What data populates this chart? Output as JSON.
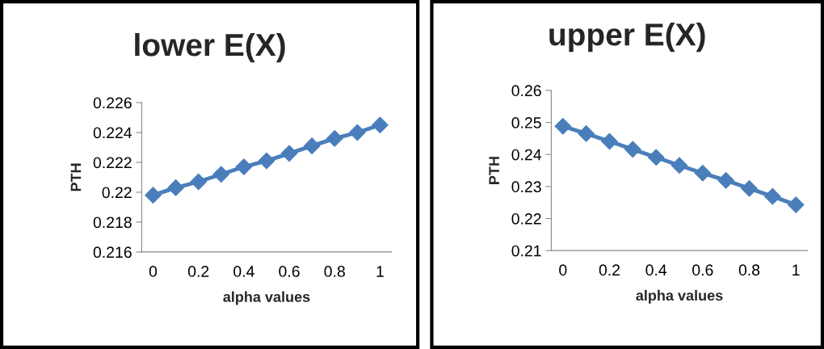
{
  "chart_data": [
    {
      "type": "line",
      "title": "lower E(X)",
      "xlabel": "alpha values",
      "ylabel": "PTH",
      "x": [
        0,
        0.1,
        0.2,
        0.3,
        0.4,
        0.5,
        0.6,
        0.7,
        0.8,
        0.9,
        1
      ],
      "series": [
        {
          "color": "#4a7ebb",
          "values": [
            0.2198,
            0.2203,
            0.2207,
            0.2212,
            0.2217,
            0.2221,
            0.2226,
            0.2231,
            0.2236,
            0.224,
            0.2245
          ]
        }
      ],
      "xlim": [
        -0.05,
        1.05
      ],
      "xticks": [
        0,
        0.2,
        0.4,
        0.6,
        0.8,
        1
      ],
      "ylim": [
        0.216,
        0.226
      ],
      "yticks": [
        0.216,
        0.218,
        0.22,
        0.222,
        0.224,
        0.226
      ],
      "marker": "diamond",
      "grid": false,
      "legend": false
    },
    {
      "type": "line",
      "title": "upper E(X)",
      "xlabel": "alpha values",
      "ylabel": "PTH",
      "x": [
        0,
        0.1,
        0.2,
        0.3,
        0.4,
        0.5,
        0.6,
        0.7,
        0.8,
        0.9,
        1
      ],
      "series": [
        {
          "color": "#4a7ebb",
          "values": [
            0.2488,
            0.2465,
            0.2441,
            0.2416,
            0.2391,
            0.2366,
            0.2342,
            0.2319,
            0.2294,
            0.2269,
            0.2243
          ]
        }
      ],
      "xlim": [
        -0.05,
        1.05
      ],
      "xticks": [
        0,
        0.2,
        0.4,
        0.6,
        0.8,
        1
      ],
      "ylim": [
        0.21,
        0.26
      ],
      "yticks": [
        0.21,
        0.22,
        0.23,
        0.24,
        0.25,
        0.26
      ],
      "marker": "diamond",
      "grid": false,
      "legend": false
    }
  ]
}
